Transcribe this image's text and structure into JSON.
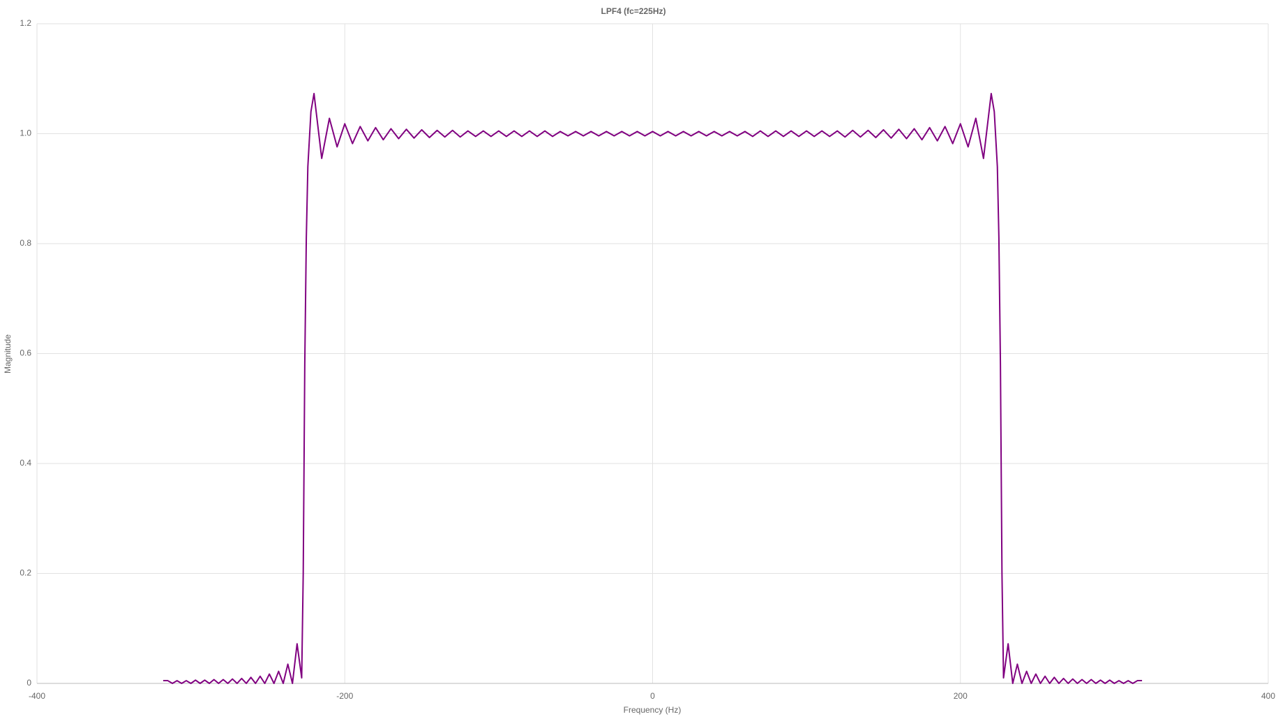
{
  "chart_data": {
    "type": "line",
    "title": "LPF4 (fc=225Hz)",
    "x_label": "Frequency (Hz)",
    "y_label": "Magnitude",
    "color": "#800080",
    "grid": true,
    "xlim": [
      -400,
      400
    ],
    "xticks": [
      -400,
      -200,
      0,
      200,
      400
    ],
    "ylim": [
      0,
      1.2
    ],
    "yticks": [
      0,
      0.2,
      0.4,
      0.6,
      0.8,
      {
        "value": 1,
        "label": "1.0"
      },
      1.2
    ],
    "x": [
      -318,
      -315,
      -312,
      -309,
      -306,
      -303,
      -300,
      -297,
      -294,
      -291,
      -288,
      -285,
      -282,
      -279,
      -276,
      -273,
      -270,
      -267,
      -264,
      -261,
      -258,
      -255,
      -252,
      -249,
      -246,
      -243,
      -240,
      -237,
      -234,
      -231,
      -228,
      -227,
      -226,
      -225,
      -224,
      -222,
      -220,
      -215,
      -210,
      -205,
      -200,
      -195,
      -190,
      -185,
      -180,
      -175,
      -170,
      -165,
      -160,
      -155,
      -150,
      -145,
      -140,
      -135,
      -130,
      -125,
      -120,
      -115,
      -110,
      -105,
      -100,
      -95,
      -90,
      -85,
      -80,
      -75,
      -70,
      -65,
      -60,
      -55,
      -50,
      -45,
      -40,
      -35,
      -30,
      -25,
      -20,
      -15,
      -10,
      -5,
      0,
      5,
      10,
      15,
      20,
      25,
      30,
      35,
      40,
      45,
      50,
      55,
      60,
      65,
      70,
      75,
      80,
      85,
      90,
      95,
      100,
      105,
      110,
      115,
      120,
      125,
      130,
      135,
      140,
      145,
      150,
      155,
      160,
      165,
      170,
      175,
      180,
      185,
      190,
      195,
      200,
      205,
      210,
      215,
      220,
      222,
      224,
      225,
      226,
      227,
      228,
      231,
      234,
      237,
      240,
      243,
      246,
      249,
      252,
      255,
      258,
      261,
      264,
      267,
      270,
      273,
      276,
      279,
      282,
      285,
      288,
      291,
      294,
      297,
      300,
      303,
      306,
      309,
      312,
      315,
      318
    ],
    "values": [
      0.005,
      0.005,
      0,
      0.005,
      0,
      0.005,
      0,
      0.006,
      0,
      0.006,
      0,
      0.007,
      0,
      0.007,
      0,
      0.008,
      0,
      0.009,
      0,
      0.011,
      0,
      0.013,
      0,
      0.017,
      0,
      0.022,
      0,
      0.035,
      0,
      0.072,
      0.01,
      0.2,
      0.58,
      0.81,
      0.94,
      1.04,
      1.073,
      0.955,
      1.028,
      0.976,
      1.018,
      0.982,
      1.013,
      0.987,
      1.011,
      0.989,
      1.009,
      0.991,
      1.008,
      0.992,
      1.007,
      0.993,
      1.006,
      0.994,
      1.006,
      0.994,
      1.005,
      0.995,
      1.005,
      0.995,
      1.005,
      0.995,
      1.005,
      0.995,
      1.005,
      0.995,
      1.005,
      0.995,
      1.004,
      0.996,
      1.004,
      0.996,
      1.004,
      0.996,
      1.004,
      0.996,
      1.004,
      0.996,
      1.004,
      0.996,
      1.004,
      0.996,
      1.004,
      0.996,
      1.004,
      0.996,
      1.004,
      0.996,
      1.004,
      0.996,
      1.004,
      0.996,
      1.004,
      0.995,
      1.005,
      0.995,
      1.005,
      0.995,
      1.005,
      0.995,
      1.005,
      0.995,
      1.005,
      0.995,
      1.005,
      0.994,
      1.006,
      0.994,
      1.006,
      0.993,
      1.007,
      0.992,
      1.008,
      0.991,
      1.009,
      0.989,
      1.011,
      0.987,
      1.013,
      0.982,
      1.018,
      0.976,
      1.028,
      0.955,
      1.073,
      1.04,
      0.94,
      0.81,
      0.58,
      0.2,
      0.01,
      0.072,
      0,
      0.035,
      0,
      0.022,
      0,
      0.017,
      0,
      0.013,
      0,
      0.011,
      0,
      0.009,
      0,
      0.008,
      0,
      0.007,
      0,
      0.007,
      0,
      0.006,
      0,
      0.006,
      0,
      0.005,
      0,
      0.005,
      0,
      0.005,
      0.005
    ]
  }
}
